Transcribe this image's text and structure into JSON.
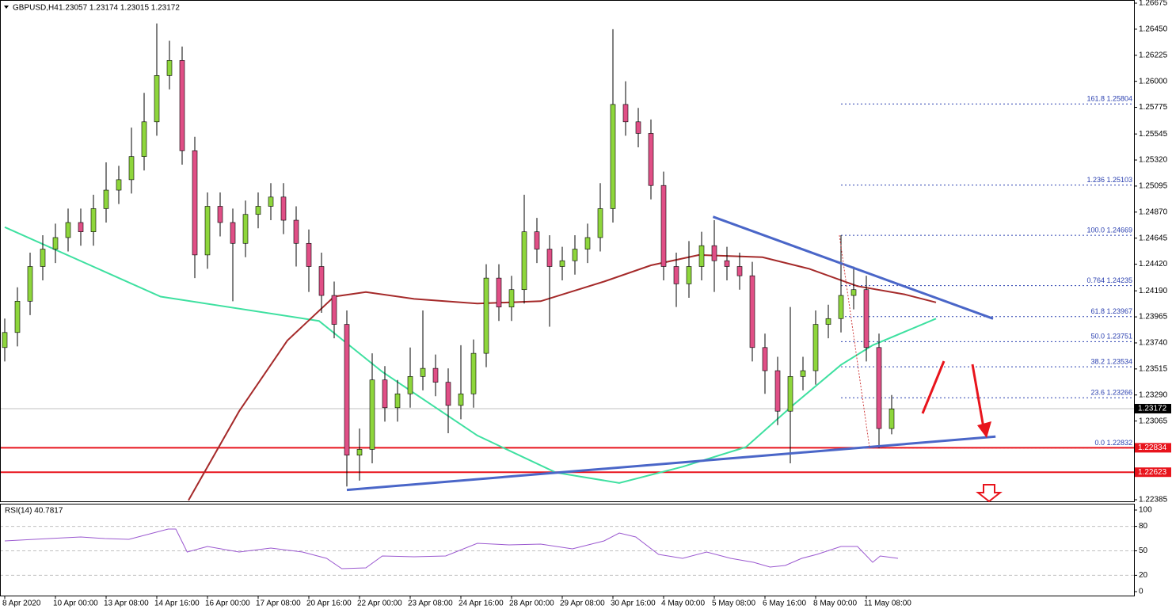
{
  "chart_data": [
    {
      "type": "candlestick",
      "title": "GBPUSD,H4",
      "subtitle": "1.23057 1.23174 1.23015 1.23172",
      "up_color": "#8ed63c",
      "down_color": "#e04f86",
      "open": [
        1.237,
        1.2383,
        1.241,
        1.244,
        1.2455,
        1.2465,
        1.2478,
        1.247,
        1.249,
        1.2506,
        1.2515,
        1.2535,
        1.2565,
        1.2605,
        1.2618,
        1.254,
        1.245,
        1.2492,
        1.2478,
        1.246,
        1.2485,
        1.2492,
        1.25,
        1.248,
        1.246,
        1.244,
        1.2415,
        1.239,
        1.2277,
        1.2282,
        1.2342,
        1.2318,
        1.233,
        1.2345,
        1.2352,
        1.234,
        1.232,
        1.233,
        1.2365,
        1.243,
        1.2405,
        1.242,
        1.247,
        1.2455,
        1.244,
        1.2445,
        1.2455,
        1.2465,
        1.249,
        1.258,
        1.2565,
        1.2555,
        1.251,
        1.244,
        1.2425,
        1.244,
        1.2458,
        1.2445,
        1.244,
        1.2432,
        1.237,
        1.235,
        1.2315,
        1.2345,
        1.235,
        1.239,
        1.2395,
        1.2415,
        1.242,
        1.237,
        1.23
      ],
      "high": [
        1.2395,
        1.2422,
        1.2452,
        1.2467,
        1.2477,
        1.249,
        1.249,
        1.2502,
        1.253,
        1.2527,
        1.256,
        1.259,
        1.265,
        1.2635,
        1.263,
        1.2552,
        1.2504,
        1.2504,
        1.249,
        1.2497,
        1.2504,
        1.2512,
        1.2512,
        1.2492,
        1.2472,
        1.2452,
        1.2427,
        1.2402,
        1.23,
        1.2365,
        1.2354,
        1.2342,
        1.237,
        1.2402,
        1.2364,
        1.2352,
        1.2372,
        1.2377,
        1.2442,
        1.2442,
        1.2432,
        1.2502,
        1.2482,
        1.2467,
        1.2457,
        1.2467,
        1.2477,
        1.2512,
        1.2645,
        1.26,
        1.2577,
        1.2567,
        1.2522,
        1.2452,
        1.2462,
        1.247,
        1.248,
        1.2457,
        1.2452,
        1.2444,
        1.2382,
        1.2362,
        1.2405,
        1.2362,
        1.2402,
        1.2407,
        1.2467,
        1.244,
        1.2432,
        1.2382,
        1.2329
      ],
      "low": [
        1.2358,
        1.2371,
        1.2398,
        1.2428,
        1.2443,
        1.2453,
        1.2458,
        1.2458,
        1.2478,
        1.2494,
        1.2503,
        1.2523,
        1.2553,
        1.2593,
        1.2528,
        1.243,
        1.2438,
        1.2466,
        1.241,
        1.2448,
        1.2473,
        1.248,
        1.2468,
        1.244,
        1.2418,
        1.24,
        1.2378,
        1.225,
        1.2255,
        1.227,
        1.2306,
        1.2306,
        1.2318,
        1.2333,
        1.2328,
        1.2296,
        1.2308,
        1.2318,
        1.2353,
        1.2393,
        1.2393,
        1.2408,
        1.2443,
        1.2388,
        1.2428,
        1.2433,
        1.2443,
        1.2453,
        1.2478,
        1.2553,
        1.2543,
        1.2498,
        1.2428,
        1.2405,
        1.2413,
        1.2428,
        1.2418,
        1.2428,
        1.242,
        1.2358,
        1.233,
        1.2303,
        1.227,
        1.2333,
        1.2338,
        1.2378,
        1.2383,
        1.2403,
        1.2358,
        1.2283,
        1.2295
      ],
      "close": [
        1.2383,
        1.241,
        1.244,
        1.2455,
        1.2465,
        1.2478,
        1.247,
        1.249,
        1.2506,
        1.2515,
        1.2535,
        1.2565,
        1.2605,
        1.2618,
        1.254,
        1.245,
        1.2492,
        1.2478,
        1.246,
        1.2485,
        1.2492,
        1.25,
        1.248,
        1.246,
        1.244,
        1.2415,
        1.239,
        1.2277,
        1.2282,
        1.2342,
        1.2318,
        1.233,
        1.2345,
        1.2352,
        1.234,
        1.232,
        1.233,
        1.2365,
        1.243,
        1.2405,
        1.242,
        1.247,
        1.2455,
        1.244,
        1.2445,
        1.2455,
        1.2465,
        1.249,
        1.258,
        1.2565,
        1.2555,
        1.251,
        1.244,
        1.2425,
        1.244,
        1.2458,
        1.2445,
        1.244,
        1.2432,
        1.237,
        1.235,
        1.2315,
        1.2345,
        1.235,
        1.239,
        1.2395,
        1.2415,
        1.242,
        1.237,
        1.23,
        1.2317
      ],
      "xticks": [
        {
          "value": 0,
          "label": "8 Apr 2020"
        },
        {
          "value": 4,
          "label": "10 Apr 00:00"
        },
        {
          "value": 8,
          "label": "13 Apr 08:00"
        },
        {
          "value": 12,
          "label": "14 Apr 16:00"
        },
        {
          "value": 16,
          "label": "16 Apr 00:00"
        },
        {
          "value": 20,
          "label": "17 Apr 08:00"
        },
        {
          "value": 24,
          "label": "20 Apr 16:00"
        },
        {
          "value": 28,
          "label": "22 Apr 00:00"
        },
        {
          "value": 32,
          "label": "23 Apr 08:00"
        },
        {
          "value": 36,
          "label": "24 Apr 16:00"
        },
        {
          "value": 40,
          "label": "28 Apr 00:00"
        },
        {
          "value": 44,
          "label": "29 Apr 08:00"
        },
        {
          "value": 48,
          "label": "30 Apr 16:00"
        },
        {
          "value": 52,
          "label": "4 May 00:00"
        },
        {
          "value": 56,
          "label": "5 May 08:00"
        },
        {
          "value": 60,
          "label": "6 May 16:00"
        },
        {
          "value": 64,
          "label": "8 May 00:00"
        },
        {
          "value": 68,
          "label": "11 May 08:00"
        }
      ],
      "ylim": [
        1.22385,
        1.26675
      ],
      "yticks": [
        1.26675,
        {
          "value": 1.2645,
          "label": "1.26450"
        },
        {
          "value": 1.26225,
          "label": "1.26225"
        },
        {
          "value": 1.26,
          "label": "1.26000"
        },
        1.25775,
        1.25545,
        {
          "value": 1.2532,
          "label": "1.25320"
        },
        1.25095,
        {
          "value": 1.2487,
          "label": "1.24870"
        },
        1.24645,
        {
          "value": 1.2442,
          "label": "1.24420"
        },
        {
          "value": 1.2419,
          "label": "1.24190"
        },
        1.23965,
        {
          "value": 1.2374,
          "label": "1.23740"
        },
        1.23515,
        {
          "value": 1.2329,
          "label": "1.23290"
        },
        1.23065,
        1.22385
      ],
      "overlays": [
        {
          "color": "#3ee0a0",
          "x": [
            0,
            12.3,
            24.8,
            29.8,
            37.3,
            43.5,
            48.5,
            53.5,
            58.5,
            62.3,
            66,
            68.5,
            73.5
          ],
          "values": [
            1.2474,
            1.2414,
            1.2393,
            1.2349,
            1.2294,
            1.2262,
            1.2253,
            1.2267,
            1.2284,
            1.2321,
            1.2355,
            1.2372,
            1.2395
          ]
        },
        {
          "color": "#a52a2a",
          "x": [
            14.5,
            18.5,
            22.3,
            26,
            28.5,
            32.3,
            37.3,
            42.3,
            47.3,
            51,
            54.8,
            59.8,
            63.5,
            67.3,
            71,
            73.5
          ],
          "values": [
            1.2238,
            1.2315,
            1.2376,
            1.2414,
            1.2418,
            1.2412,
            1.2408,
            1.241,
            1.2427,
            1.2441,
            1.245,
            1.2448,
            1.2438,
            1.2423,
            1.2416,
            1.2409
          ]
        }
      ],
      "trendlines": [
        {
          "color": "#4a66c8",
          "x": [
            55.9,
            78
          ],
          "values": [
            1.2483,
            1.2395
          ]
        },
        {
          "color": "#4a66c8",
          "x": [
            27,
            78.2
          ],
          "values": [
            1.2247,
            1.2293
          ]
        }
      ],
      "hlines": [
        {
          "value": 1.22834,
          "color": "#e8141c"
        },
        {
          "value": 1.22623,
          "color": "#e8141c"
        }
      ],
      "last_price": 1.23172,
      "fibonacci": {
        "color": "#2b40b0",
        "x": 66,
        "levels": [
          {
            "value": 1.25804,
            "label": "161.8 1.25804"
          },
          {
            "value": 1.25103,
            "label": "1.236 1.25103"
          },
          {
            "value": 1.24669,
            "label": "100.0 1.24669"
          },
          {
            "value": 1.24235,
            "label": "0.764 1.24235"
          },
          {
            "value": 1.23967,
            "label": "61.8 1.23967"
          },
          {
            "value": 1.23751,
            "label": "50.0 1.23751"
          },
          {
            "value": 1.23534,
            "label": "38.2 1.23534"
          },
          {
            "value": 1.23266,
            "label": "23.6 1.23266"
          },
          {
            "value": 1.22832,
            "label": "0.0 1.22832"
          }
        ]
      }
    },
    {
      "type": "line",
      "title": "RSI(14) 40.7817",
      "color": "#9b59d0",
      "x": [
        0,
        3.5,
        6,
        7.9,
        9.8,
        12.9,
        13.5,
        14.4,
        16,
        18.5,
        21,
        23.5,
        25.4,
        26.6,
        28.5,
        29.8,
        32.3,
        34.8,
        37.3,
        39.8,
        42.3,
        44.8,
        47.3,
        48.5,
        49.8,
        51.6,
        53.5,
        55.4,
        57.3,
        59.1,
        60.4,
        61.6,
        62.9,
        64.1,
        66,
        67.3,
        68.5,
        69.1,
        70.5
      ],
      "values": [
        62.1,
        65.0,
        67.0,
        65.0,
        64.1,
        76.7,
        76.7,
        48.5,
        55.3,
        48.5,
        53.4,
        48.5,
        40.8,
        28.2,
        29.1,
        43.7,
        42.7,
        43.7,
        59.2,
        57.3,
        58.3,
        52.4,
        62.1,
        71.8,
        67.0,
        45.6,
        40.8,
        48.5,
        40.8,
        35.9,
        30.1,
        32.0,
        40.8,
        45.6,
        55.3,
        55.3,
        35.9,
        43.7,
        40.8
      ],
      "ylim": [
        0,
        100
      ],
      "yticks": [
        100,
        80,
        50,
        20,
        0
      ]
    }
  ]
}
